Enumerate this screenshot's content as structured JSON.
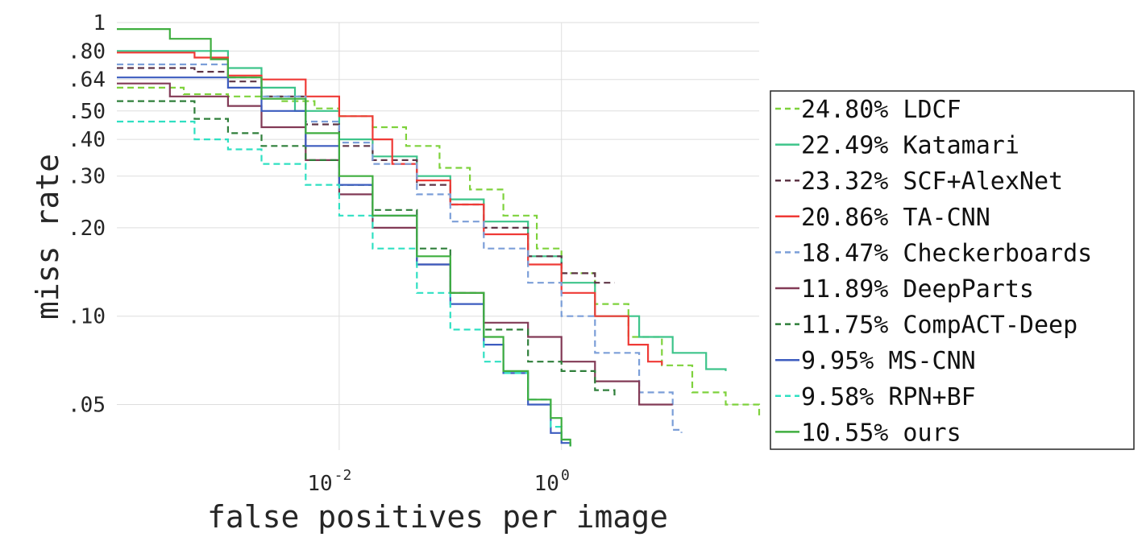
{
  "chart_data": {
    "type": "line",
    "title": "",
    "xlabel": "false positives per image",
    "ylabel": "miss rate",
    "xscale": "log",
    "yscale": "log",
    "xlim": [
      0.0001,
      60
    ],
    "ylim": [
      0.035,
      1
    ],
    "grid": true,
    "legend_position": "right",
    "x_ticks": [
      {
        "value": 0.01,
        "base": "10",
        "exp": "-2"
      },
      {
        "value": 1,
        "base": "10",
        "exp": "0"
      }
    ],
    "y_ticks": [
      {
        "value": 1,
        "label": "1"
      },
      {
        "value": 0.8,
        "label": ".80"
      },
      {
        "value": 0.64,
        "label": ".64"
      },
      {
        "value": 0.5,
        "label": ".50"
      },
      {
        "value": 0.4,
        "label": ".40"
      },
      {
        "value": 0.3,
        "label": ".30"
      },
      {
        "value": 0.2,
        "label": ".20"
      },
      {
        "value": 0.1,
        "label": ".10"
      },
      {
        "value": 0.05,
        "label": ".05"
      }
    ],
    "series": [
      {
        "name": "24.80% LDCF",
        "color": "#7ed23c",
        "dash": true,
        "x": [
          0.0001,
          0.0004,
          0.001,
          0.003,
          0.006,
          0.01,
          0.02,
          0.04,
          0.08,
          0.15,
          0.3,
          0.6,
          1,
          2,
          4,
          8,
          15,
          30,
          60
        ],
        "y": [
          0.6,
          0.57,
          0.56,
          0.54,
          0.51,
          0.48,
          0.44,
          0.38,
          0.32,
          0.27,
          0.22,
          0.17,
          0.14,
          0.11,
          0.085,
          0.068,
          0.055,
          0.05,
          0.045
        ]
      },
      {
        "name": "22.49% Katamari",
        "color": "#3dc48a",
        "dash": false,
        "x": [
          0.0001,
          0.0003,
          0.001,
          0.002,
          0.004,
          0.01,
          0.02,
          0.05,
          0.1,
          0.2,
          0.5,
          1,
          2,
          5,
          10,
          20,
          30
        ],
        "y": [
          0.8,
          0.8,
          0.7,
          0.6,
          0.5,
          0.4,
          0.35,
          0.3,
          0.25,
          0.21,
          0.16,
          0.13,
          0.1,
          0.085,
          0.075,
          0.066,
          0.065
        ]
      },
      {
        "name": "23.32% SCF+AlexNet",
        "color": "#5e3446",
        "dash": true,
        "x": [
          0.0001,
          0.0005,
          0.001,
          0.002,
          0.005,
          0.01,
          0.02,
          0.05,
          0.1,
          0.2,
          0.5,
          1,
          2,
          3
        ],
        "y": [
          0.7,
          0.68,
          0.63,
          0.56,
          0.45,
          0.38,
          0.34,
          0.28,
          0.24,
          0.2,
          0.16,
          0.14,
          0.13,
          0.13
        ]
      },
      {
        "name": "20.86% TA-CNN",
        "color": "#ef3a36",
        "dash": false,
        "x": [
          0.0001,
          0.0005,
          0.001,
          0.002,
          0.005,
          0.01,
          0.02,
          0.03,
          0.05,
          0.1,
          0.2,
          0.5,
          1,
          2,
          4,
          6,
          8
        ],
        "y": [
          0.79,
          0.76,
          0.66,
          0.64,
          0.56,
          0.48,
          0.4,
          0.33,
          0.29,
          0.24,
          0.19,
          0.15,
          0.12,
          0.1,
          0.08,
          0.07,
          0.068
        ]
      },
      {
        "name": "18.47% Checkerboards",
        "color": "#7b9ed8",
        "dash": true,
        "x": [
          0.0001,
          0.0005,
          0.001,
          0.002,
          0.005,
          0.01,
          0.02,
          0.05,
          0.1,
          0.2,
          0.5,
          1,
          2,
          5,
          10,
          12
        ],
        "y": [
          0.72,
          0.72,
          0.65,
          0.56,
          0.46,
          0.39,
          0.33,
          0.26,
          0.21,
          0.17,
          0.13,
          0.1,
          0.075,
          0.055,
          0.041,
          0.04
        ]
      },
      {
        "name": "11.89% DeepParts",
        "color": "#823a56",
        "dash": false,
        "x": [
          0.0001,
          0.0003,
          0.001,
          0.002,
          0.005,
          0.01,
          0.02,
          0.05,
          0.1,
          0.2,
          0.5,
          1,
          2,
          5,
          10
        ],
        "y": [
          0.62,
          0.56,
          0.52,
          0.44,
          0.34,
          0.26,
          0.2,
          0.15,
          0.12,
          0.095,
          0.085,
          0.07,
          0.06,
          0.05,
          0.05
        ]
      },
      {
        "name": "11.75% CompACT-Deep",
        "color": "#2f7f3a",
        "dash": true,
        "x": [
          0.0001,
          0.0003,
          0.0005,
          0.001,
          0.002,
          0.005,
          0.01,
          0.02,
          0.05,
          0.1,
          0.2,
          0.5,
          1,
          2,
          3
        ],
        "y": [
          0.54,
          0.54,
          0.47,
          0.42,
          0.38,
          0.34,
          0.28,
          0.23,
          0.17,
          0.12,
          0.09,
          0.07,
          0.065,
          0.056,
          0.053
        ]
      },
      {
        "name": "9.95% MS-CNN",
        "color": "#3c5cbf",
        "dash": false,
        "x": [
          0.0001,
          0.0003,
          0.001,
          0.002,
          0.005,
          0.01,
          0.02,
          0.05,
          0.1,
          0.2,
          0.3,
          0.5,
          0.8,
          1,
          1.2
        ],
        "y": [
          0.65,
          0.65,
          0.6,
          0.5,
          0.38,
          0.28,
          0.22,
          0.15,
          0.11,
          0.08,
          0.064,
          0.05,
          0.04,
          0.037,
          0.036
        ]
      },
      {
        "name": "9.58% RPN+BF",
        "color": "#2fe0c2",
        "dash": true,
        "x": [
          0.0001,
          0.0004,
          0.0005,
          0.001,
          0.002,
          0.005,
          0.01,
          0.02,
          0.05,
          0.1,
          0.2,
          0.3,
          0.5,
          0.8,
          1,
          1.2
        ],
        "y": [
          0.46,
          0.46,
          0.4,
          0.37,
          0.33,
          0.28,
          0.22,
          0.17,
          0.12,
          0.09,
          0.07,
          0.064,
          0.052,
          0.042,
          0.038,
          0.036
        ]
      },
      {
        "name": "10.55% ours",
        "color": "#3fae3f",
        "dash": false,
        "x": [
          0.0001,
          0.0003,
          0.0007,
          0.001,
          0.002,
          0.005,
          0.01,
          0.02,
          0.05,
          0.1,
          0.2,
          0.3,
          0.5,
          0.8,
          1,
          1.2
        ],
        "y": [
          0.95,
          0.88,
          0.75,
          0.65,
          0.55,
          0.42,
          0.3,
          0.22,
          0.16,
          0.12,
          0.085,
          0.065,
          0.052,
          0.045,
          0.038,
          0.036
        ]
      }
    ]
  }
}
